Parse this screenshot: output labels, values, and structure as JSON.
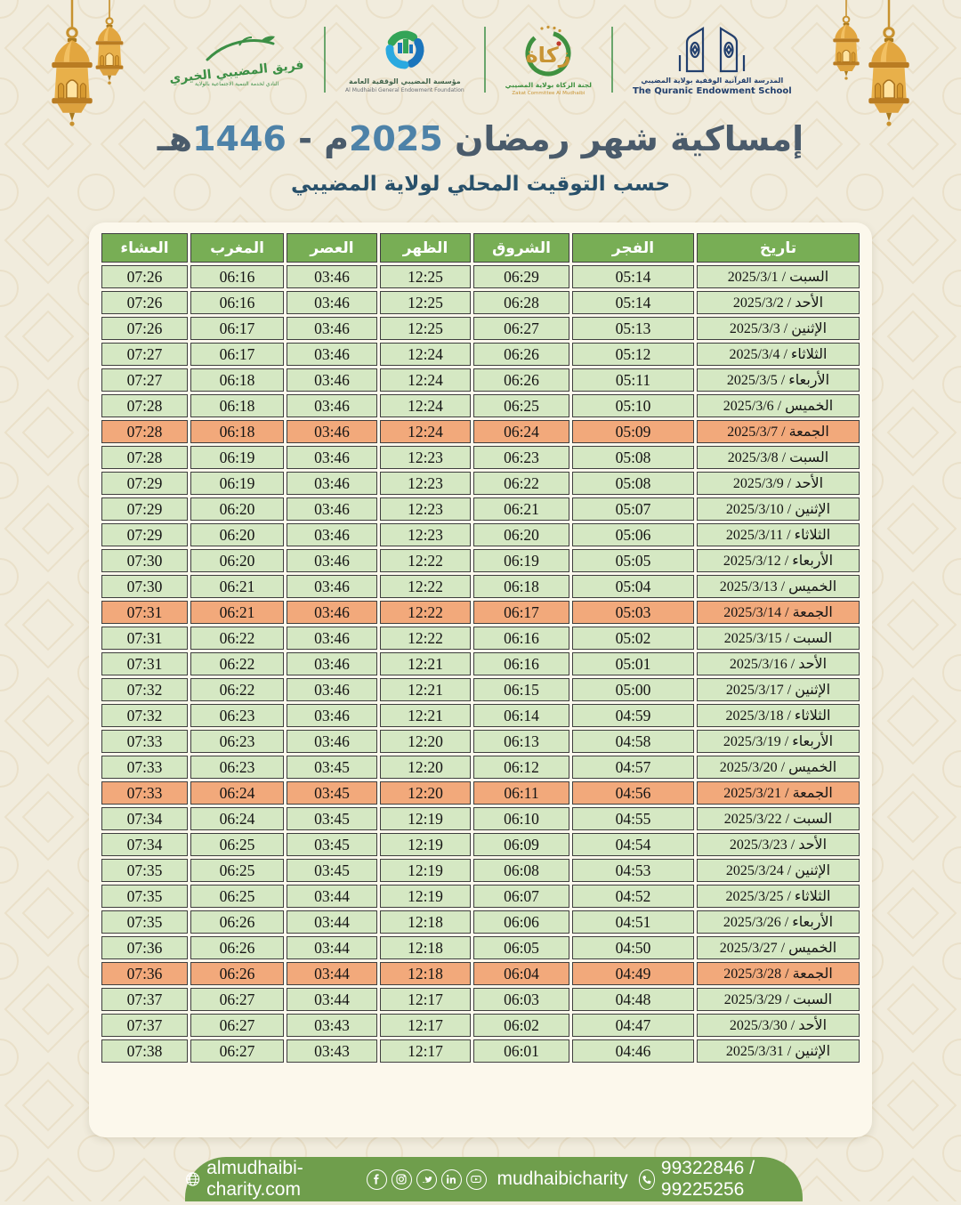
{
  "colors": {
    "background": "#f1ecdd",
    "panel": "#fcf8ec",
    "header_green": "#78ae55",
    "row_green": "#d5e8c3",
    "friday_orange": "#f2a97b",
    "border_dark": "#3f3f3f",
    "footer_green": "#6f9e4c",
    "title_dark": "#4a5b6b",
    "title_blue": "#4d82a8",
    "subtitle_blue": "#28506a",
    "lantern_gold": "#e2a63f",
    "logo_green": "#3c8f45"
  },
  "logos": {
    "charity_team": {
      "name": "فريق المضيبي الخيري",
      "caption": "النادي لخدمة التنمية الاجتماعية بالولاية"
    },
    "endowment_foundation": {
      "name_ar": "مؤسسة المضيبي الوقفية العامة",
      "name_en": "Al Mudhaibi General Endowment Foundation"
    },
    "zakat_committee": {
      "word": "زكاة",
      "caption_ar": "لجنة الزكاة بولاية المضيبي",
      "caption_en": "Zakat Committee Al Mudhaibi"
    },
    "quranic_school": {
      "name_ar": "المدرسة القرآنية الوقفية بولاية المضيبي",
      "name_en": "The Quranic Endowment School"
    }
  },
  "title": {
    "prefix": "إمساكية شهر رمضان ",
    "gregorian_year": "2025",
    "gregorian_era_and_dash": "م - ",
    "hijri_year": "1446",
    "hijri_era": "هـ"
  },
  "subtitle": "حسب التوقيت المحلي لولاية المضيبي",
  "table": {
    "headers": {
      "date": "تاريخ",
      "fajr": "الفجر",
      "shurooq": "الشروق",
      "dhuhr": "الظهر",
      "asr": "العصر",
      "maghrib": "المغرب",
      "isha": "العشاء"
    },
    "rows": [
      {
        "day": "السبت",
        "date": "2025/3/1",
        "fajr": "05:14",
        "shurooq": "06:29",
        "dhuhr": "12:25",
        "asr": "03:46",
        "maghrib": "06:16",
        "isha": "07:26",
        "friday": false
      },
      {
        "day": "الأحد",
        "date": "2025/3/2",
        "fajr": "05:14",
        "shurooq": "06:28",
        "dhuhr": "12:25",
        "asr": "03:46",
        "maghrib": "06:16",
        "isha": "07:26",
        "friday": false
      },
      {
        "day": "الإثنين",
        "date": "2025/3/3",
        "fajr": "05:13",
        "shurooq": "06:27",
        "dhuhr": "12:25",
        "asr": "03:46",
        "maghrib": "06:17",
        "isha": "07:26",
        "friday": false
      },
      {
        "day": "الثلاثاء",
        "date": "2025/3/4",
        "fajr": "05:12",
        "shurooq": "06:26",
        "dhuhr": "12:24",
        "asr": "03:46",
        "maghrib": "06:17",
        "isha": "07:27",
        "friday": false
      },
      {
        "day": "الأربعاء",
        "date": "2025/3/5",
        "fajr": "05:11",
        "shurooq": "06:26",
        "dhuhr": "12:24",
        "asr": "03:46",
        "maghrib": "06:18",
        "isha": "07:27",
        "friday": false
      },
      {
        "day": "الخميس",
        "date": "2025/3/6",
        "fajr": "05:10",
        "shurooq": "06:25",
        "dhuhr": "12:24",
        "asr": "03:46",
        "maghrib": "06:18",
        "isha": "07:28",
        "friday": false
      },
      {
        "day": "الجمعة",
        "date": "2025/3/7",
        "fajr": "05:09",
        "shurooq": "06:24",
        "dhuhr": "12:24",
        "asr": "03:46",
        "maghrib": "06:18",
        "isha": "07:28",
        "friday": true
      },
      {
        "day": "السبت",
        "date": "2025/3/8",
        "fajr": "05:08",
        "shurooq": "06:23",
        "dhuhr": "12:23",
        "asr": "03:46",
        "maghrib": "06:19",
        "isha": "07:28",
        "friday": false
      },
      {
        "day": "الأحد",
        "date": "2025/3/9",
        "fajr": "05:08",
        "shurooq": "06:22",
        "dhuhr": "12:23",
        "asr": "03:46",
        "maghrib": "06:19",
        "isha": "07:29",
        "friday": false
      },
      {
        "day": "الإثنين",
        "date": "2025/3/10",
        "fajr": "05:07",
        "shurooq": "06:21",
        "dhuhr": "12:23",
        "asr": "03:46",
        "maghrib": "06:20",
        "isha": "07:29",
        "friday": false
      },
      {
        "day": "الثلاثاء",
        "date": "2025/3/11",
        "fajr": "05:06",
        "shurooq": "06:20",
        "dhuhr": "12:23",
        "asr": "03:46",
        "maghrib": "06:20",
        "isha": "07:29",
        "friday": false
      },
      {
        "day": "الأربعاء",
        "date": "2025/3/12",
        "fajr": "05:05",
        "shurooq": "06:19",
        "dhuhr": "12:22",
        "asr": "03:46",
        "maghrib": "06:20",
        "isha": "07:30",
        "friday": false
      },
      {
        "day": "الخميس",
        "date": "2025/3/13",
        "fajr": "05:04",
        "shurooq": "06:18",
        "dhuhr": "12:22",
        "asr": "03:46",
        "maghrib": "06:21",
        "isha": "07:30",
        "friday": false
      },
      {
        "day": "الجمعة",
        "date": "2025/3/14",
        "fajr": "05:03",
        "shurooq": "06:17",
        "dhuhr": "12:22",
        "asr": "03:46",
        "maghrib": "06:21",
        "isha": "07:31",
        "friday": true
      },
      {
        "day": "السبت",
        "date": "2025/3/15",
        "fajr": "05:02",
        "shurooq": "06:16",
        "dhuhr": "12:22",
        "asr": "03:46",
        "maghrib": "06:22",
        "isha": "07:31",
        "friday": false
      },
      {
        "day": "الأحد",
        "date": "2025/3/16",
        "fajr": "05:01",
        "shurooq": "06:16",
        "dhuhr": "12:21",
        "asr": "03:46",
        "maghrib": "06:22",
        "isha": "07:31",
        "friday": false
      },
      {
        "day": "الإثنين",
        "date": "2025/3/17",
        "fajr": "05:00",
        "shurooq": "06:15",
        "dhuhr": "12:21",
        "asr": "03:46",
        "maghrib": "06:22",
        "isha": "07:32",
        "friday": false
      },
      {
        "day": "الثلاثاء",
        "date": "2025/3/18",
        "fajr": "04:59",
        "shurooq": "06:14",
        "dhuhr": "12:21",
        "asr": "03:46",
        "maghrib": "06:23",
        "isha": "07:32",
        "friday": false
      },
      {
        "day": "الأربعاء",
        "date": "2025/3/19",
        "fajr": "04:58",
        "shurooq": "06:13",
        "dhuhr": "12:20",
        "asr": "03:46",
        "maghrib": "06:23",
        "isha": "07:33",
        "friday": false
      },
      {
        "day": "الخميس",
        "date": "2025/3/20",
        "fajr": "04:57",
        "shurooq": "06:12",
        "dhuhr": "12:20",
        "asr": "03:45",
        "maghrib": "06:23",
        "isha": "07:33",
        "friday": false
      },
      {
        "day": "الجمعة",
        "date": "2025/3/21",
        "fajr": "04:56",
        "shurooq": "06:11",
        "dhuhr": "12:20",
        "asr": "03:45",
        "maghrib": "06:24",
        "isha": "07:33",
        "friday": true
      },
      {
        "day": "السبت",
        "date": "2025/3/22",
        "fajr": "04:55",
        "shurooq": "06:10",
        "dhuhr": "12:19",
        "asr": "03:45",
        "maghrib": "06:24",
        "isha": "07:34",
        "friday": false
      },
      {
        "day": "الأحد",
        "date": "2025/3/23",
        "fajr": "04:54",
        "shurooq": "06:09",
        "dhuhr": "12:19",
        "asr": "03:45",
        "maghrib": "06:25",
        "isha": "07:34",
        "friday": false
      },
      {
        "day": "الإثنين",
        "date": "2025/3/24",
        "fajr": "04:53",
        "shurooq": "06:08",
        "dhuhr": "12:19",
        "asr": "03:45",
        "maghrib": "06:25",
        "isha": "07:35",
        "friday": false
      },
      {
        "day": "الثلاثاء",
        "date": "2025/3/25",
        "fajr": "04:52",
        "shurooq": "06:07",
        "dhuhr": "12:19",
        "asr": "03:44",
        "maghrib": "06:25",
        "isha": "07:35",
        "friday": false
      },
      {
        "day": "الأربعاء",
        "date": "2025/3/26",
        "fajr": "04:51",
        "shurooq": "06:06",
        "dhuhr": "12:18",
        "asr": "03:44",
        "maghrib": "06:26",
        "isha": "07:35",
        "friday": false
      },
      {
        "day": "الخميس",
        "date": "2025/3/27",
        "fajr": "04:50",
        "shurooq": "06:05",
        "dhuhr": "12:18",
        "asr": "03:44",
        "maghrib": "06:26",
        "isha": "07:36",
        "friday": false
      },
      {
        "day": "الجمعة",
        "date": "2025/3/28",
        "fajr": "04:49",
        "shurooq": "06:04",
        "dhuhr": "12:18",
        "asr": "03:44",
        "maghrib": "06:26",
        "isha": "07:36",
        "friday": true
      },
      {
        "day": "السبت",
        "date": "2025/3/29",
        "fajr": "04:48",
        "shurooq": "06:03",
        "dhuhr": "12:17",
        "asr": "03:44",
        "maghrib": "06:27",
        "isha": "07:37",
        "friday": false
      },
      {
        "day": "الأحد",
        "date": "2025/3/30",
        "fajr": "04:47",
        "shurooq": "06:02",
        "dhuhr": "12:17",
        "asr": "03:43",
        "maghrib": "06:27",
        "isha": "07:37",
        "friday": false
      },
      {
        "day": "الإثنين",
        "date": "2025/3/31",
        "fajr": "04:46",
        "shurooq": "06:01",
        "dhuhr": "12:17",
        "asr": "03:43",
        "maghrib": "06:27",
        "isha": "07:38",
        "friday": false
      }
    ]
  },
  "footer": {
    "website": "almudhaibi-charity.com",
    "social_handle": "mudhaibicharity",
    "phones": "99322846 / 99225256",
    "social_icons": [
      "facebook",
      "instagram",
      "twitter",
      "linkedin",
      "youtube"
    ]
  }
}
